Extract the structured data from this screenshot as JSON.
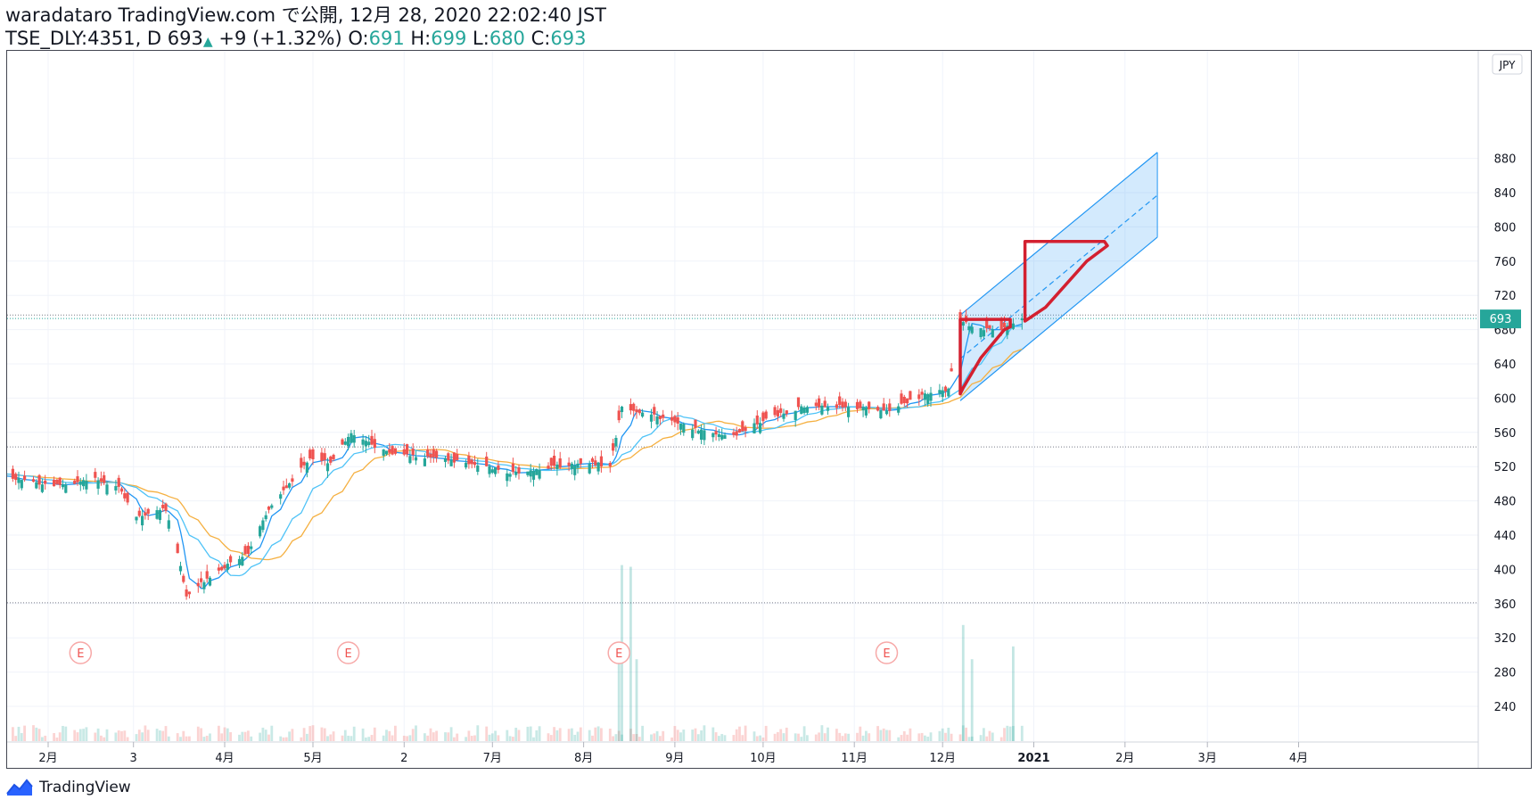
{
  "header": {
    "published_line": "waradataro TradingView.com で公開, 12月 28, 2020 22:02:40 JST",
    "symbol": "TSE_DLY:4351, D",
    "last": "693",
    "change": "+9 (+1.32%)",
    "o_label": "O:",
    "o": "691",
    "h_label": "H:",
    "h": "699",
    "l_label": "L:",
    "l": "680",
    "c_label": "C:",
    "c": "693"
  },
  "currency_badge": "JPY",
  "price_badge": "693",
  "footer": {
    "brand": "TradingView"
  },
  "colors": {
    "up": "#26a69a",
    "down": "#ef5350",
    "ma_fast": "#2196f3",
    "ma_slow": "#4fc3f7",
    "ma_mid": "#f5b041",
    "channel": "#2196f3",
    "drawing": "#d32030"
  },
  "chart_data": {
    "type": "candlestick",
    "y_ticks": [
      240,
      280,
      320,
      360,
      400,
      440,
      480,
      520,
      560,
      600,
      640,
      680,
      720,
      760,
      800,
      840,
      880
    ],
    "ylim": [
      220,
      905
    ],
    "x_ticks": [
      "2月",
      "3",
      "4月",
      "5月",
      "2",
      "7月",
      "8月",
      "9月",
      "10月",
      "11月",
      "12月",
      "2021",
      "2月",
      "3月",
      "4月"
    ],
    "earnings_marker": "E",
    "horizontal_levels": [
      697,
      543,
      361
    ],
    "keypoints": [
      [
        "2020-01-06",
        515
      ],
      [
        "2020-01-20",
        506
      ],
      [
        "2020-02-03",
        498
      ],
      [
        "2020-02-10",
        501
      ],
      [
        "2020-02-17",
        505
      ],
      [
        "2020-02-25",
        497
      ],
      [
        "2020-03-02",
        460
      ],
      [
        "2020-03-09",
        470
      ],
      [
        "2020-03-12",
        470
      ],
      [
        "2020-03-16",
        420
      ],
      [
        "2020-03-19",
        368
      ],
      [
        "2020-03-26",
        390
      ],
      [
        "2020-04-02",
        405
      ],
      [
        "2020-04-09",
        420
      ],
      [
        "2020-04-16",
        470
      ],
      [
        "2020-04-23",
        500
      ],
      [
        "2020-04-30",
        530
      ],
      [
        "2020-05-07",
        525
      ],
      [
        "2020-05-14",
        560
      ],
      [
        "2020-05-21",
        545
      ],
      [
        "2020-05-28",
        535
      ],
      [
        "2020-06-10",
        530
      ],
      [
        "2020-06-25",
        523
      ],
      [
        "2020-07-08",
        512
      ],
      [
        "2020-07-22",
        520
      ],
      [
        "2020-08-03",
        525
      ],
      [
        "2020-08-10",
        520
      ],
      [
        "2020-08-14",
        590
      ],
      [
        "2020-08-24",
        580
      ],
      [
        "2020-09-07",
        565
      ],
      [
        "2020-09-21",
        555
      ],
      [
        "2020-10-01",
        575
      ],
      [
        "2020-10-15",
        590
      ],
      [
        "2020-10-29",
        590
      ],
      [
        "2020-11-12",
        585
      ],
      [
        "2020-11-26",
        605
      ],
      [
        "2020-12-03",
        610
      ],
      [
        "2020-12-07",
        690
      ],
      [
        "2020-12-14",
        680
      ],
      [
        "2020-12-21",
        680
      ],
      [
        "2020-12-28",
        693
      ]
    ],
    "volume_spikes": [
      [
        "2020-08-13",
        310
      ],
      [
        "2020-08-14",
        405
      ],
      [
        "2020-08-17",
        403
      ],
      [
        "2020-08-19",
        295
      ],
      [
        "2020-12-08",
        335
      ],
      [
        "2020-12-11",
        295
      ],
      [
        "2020-12-25",
        310
      ]
    ],
    "last_candle": {
      "date": "2020-12-28",
      "o": 691,
      "h": 699,
      "l": 680,
      "c": 693
    },
    "regression_channel": {
      "start": "2020-12-07",
      "end": "2021-02-12",
      "upper_start": 697,
      "upper_end": 887,
      "mid_start": 646,
      "mid_end": 837,
      "lower_start": 597,
      "lower_end": 788
    },
    "drawings": [
      {
        "kind": "pennant",
        "points": [
          [
            "2020-12-07",
            605
          ],
          [
            "2020-12-07",
            692
          ],
          [
            "2020-12-24",
            692
          ],
          [
            "2020-12-24",
            683
          ],
          [
            "2020-12-22",
            680
          ],
          [
            "2020-12-14",
            647
          ],
          [
            "2020-12-08",
            612
          ],
          [
            "2020-12-07",
            605
          ]
        ]
      },
      {
        "kind": "pennant",
        "points": [
          [
            "2020-12-29",
            783
          ],
          [
            "2020-12-29",
            690
          ],
          [
            "2021-01-05",
            706
          ],
          [
            "2021-01-19",
            760
          ],
          [
            "2021-01-26",
            778
          ],
          [
            "2021-01-25",
            783
          ],
          [
            "2020-12-29",
            783
          ]
        ]
      }
    ]
  }
}
